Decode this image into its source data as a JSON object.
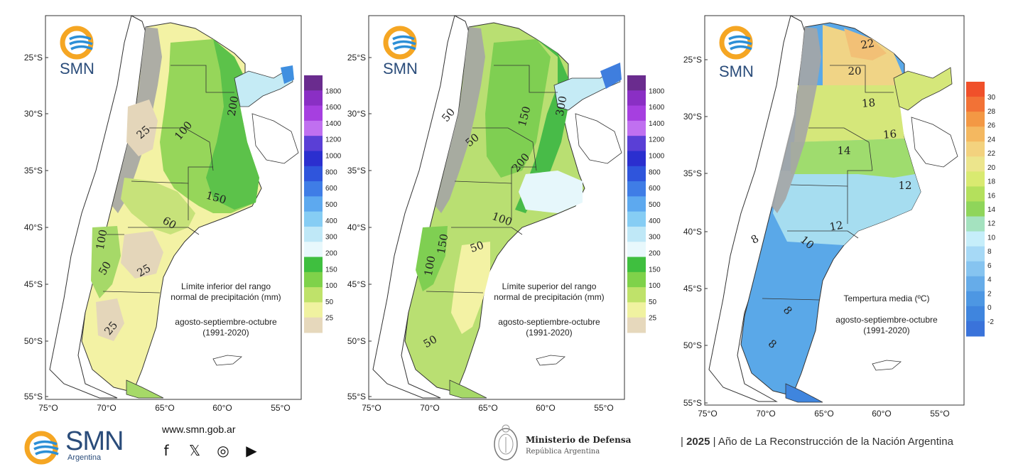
{
  "maps": [
    {
      "id": "lower",
      "caption_line1": "Límite inferior del rango",
      "caption_line2": "normal de precipitación (mm)",
      "caption_line3": "agosto-septiembre-octubre",
      "caption_line4": "(1991-2020)",
      "logo": "SMN",
      "colorbar_ticks": [
        "1800",
        "1600",
        "1400",
        "1200",
        "1000",
        "800",
        "600",
        "500",
        "400",
        "300",
        "200",
        "150",
        "100",
        "50",
        "25"
      ],
      "colorbar_colors": [
        "#6a2c8e",
        "#8a2fc4",
        "#a63fe0",
        "#c070f0",
        "#5a3fd6",
        "#2b2fcf",
        "#2f55dc",
        "#3f7de6",
        "#5da9ef",
        "#86cdf4",
        "#bfe8f7",
        "#e8f8fc",
        "#3fbf3f",
        "#7fd24a",
        "#bfe26a",
        "#f0f2a0",
        "#e6d8bc"
      ],
      "contour_labels": [
        "25",
        "100",
        "200",
        "150",
        "60",
        "100",
        "50",
        "25",
        "25"
      ]
    },
    {
      "id": "upper",
      "caption_line1": "Límite superior del rango",
      "caption_line2": "normal de precipitación (mm)",
      "caption_line3": "agosto-septiembre-octubre",
      "caption_line4": "(1991-2020)",
      "logo": "SMN",
      "colorbar_ticks": [
        "1800",
        "1600",
        "1400",
        "1200",
        "1000",
        "800",
        "600",
        "500",
        "400",
        "300",
        "200",
        "150",
        "100",
        "50",
        "25"
      ],
      "colorbar_colors": [
        "#6a2c8e",
        "#8a2fc4",
        "#a63fe0",
        "#c070f0",
        "#5a3fd6",
        "#2b2fcf",
        "#2f55dc",
        "#3f7de6",
        "#5da9ef",
        "#86cdf4",
        "#bfe8f7",
        "#e8f8fc",
        "#3fbf3f",
        "#7fd24a",
        "#bfe26a",
        "#f0f2a0",
        "#e6d8bc"
      ],
      "contour_labels": [
        "50",
        "50",
        "150",
        "300",
        "200",
        "100",
        "150",
        "100",
        "50",
        "50"
      ]
    },
    {
      "id": "temp",
      "caption_line1": "Tempertura media (ºC)",
      "caption_line2": "",
      "caption_line3": "agosto-septiembre-octubre",
      "caption_line4": "(1991-2020)",
      "logo": "SMN",
      "colorbar_ticks": [
        "30",
        "28",
        "26",
        "24",
        "22",
        "20",
        "18",
        "16",
        "14",
        "12",
        "10",
        "8",
        "6",
        "4",
        "2",
        "0",
        "-2"
      ],
      "colorbar_colors": [
        "#f0502a",
        "#f27236",
        "#f39844",
        "#f4b860",
        "#f3d27e",
        "#ece58c",
        "#d9ea70",
        "#b4e05c",
        "#8fd55a",
        "#a4e2bf",
        "#c6eefa",
        "#a6d9f6",
        "#86c4f0",
        "#66ace9",
        "#4d97e3",
        "#3f85de",
        "#3a73da"
      ],
      "contour_labels": [
        "22",
        "20",
        "18",
        "16",
        "14",
        "12",
        "12",
        "10",
        "8",
        "8",
        "8"
      ]
    }
  ],
  "lat_labels": [
    "25°S",
    "30°S",
    "35°S",
    "40°S",
    "45°S",
    "50°S",
    "55°S"
  ],
  "lon_labels": [
    "75°O",
    "70°O",
    "65°O",
    "60°O",
    "55°O"
  ],
  "footer": {
    "brand": "SMN",
    "brand_sub": "Argentina",
    "website": "www.smn.gob.ar",
    "social_icons": [
      "facebook-icon",
      "x-icon",
      "instagram-icon",
      "youtube-icon"
    ],
    "ministry": "Ministerio de Defensa",
    "republic": "República Argentina",
    "year_prefix": "| ",
    "year": "2025",
    "year_text": "| Año de La Reconstrucción de la Nación Argentina"
  },
  "colors": {
    "logo_orange": "#f5a623",
    "logo_blue": "#2d8fd6",
    "brand_blue": "#2a4c7a",
    "andes_gray": "#9a9a9a"
  }
}
